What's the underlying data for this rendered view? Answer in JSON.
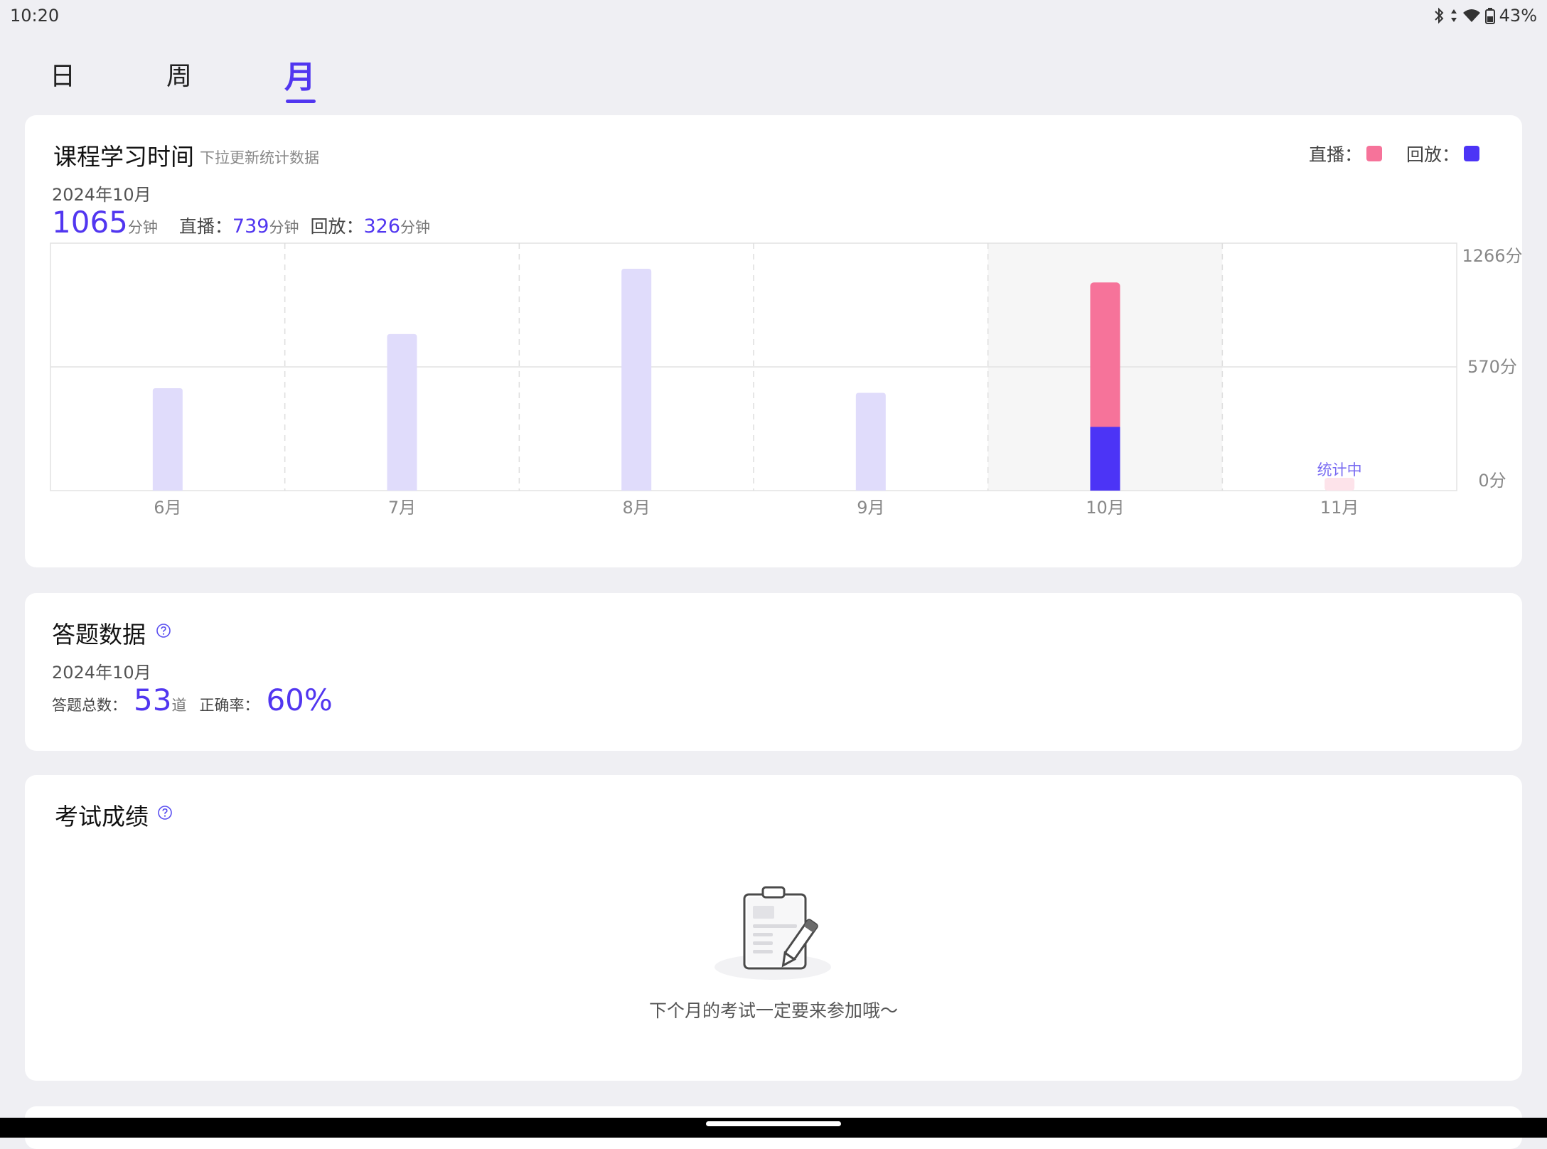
{
  "status_bar": {
    "time": "10:20",
    "battery": "43%"
  },
  "tabs": [
    {
      "label": "日",
      "active": false
    },
    {
      "label": "周",
      "active": false
    },
    {
      "label": "月",
      "active": true
    }
  ],
  "study": {
    "title": "课程学习时间",
    "subtitle": "下拉更新统计数据",
    "legend": {
      "live": "直播：",
      "replay": "回放："
    },
    "date": "2024年10月",
    "total": "1065",
    "total_unit": "分钟",
    "live_label": "直播：",
    "live_value": "739",
    "live_unit": "分钟",
    "replay_label": "回放：",
    "replay_value": "326",
    "replay_unit": "分钟",
    "in_progress_label": "统计中"
  },
  "colors": {
    "accent": "#5136f0",
    "live": "#f6739a",
    "replay": "#4c34f6",
    "inactive_bar": "#e0dcfb",
    "pending_bar": "#fde3ea"
  },
  "chart_data": {
    "type": "bar",
    "categories": [
      "6月",
      "7月",
      "8月",
      "9月",
      "10月",
      "11月"
    ],
    "series": [
      {
        "name": "直播",
        "values": [
          null,
          null,
          null,
          null,
          739,
          0
        ]
      },
      {
        "name": "回放",
        "values": [
          null,
          null,
          null,
          null,
          326,
          0
        ]
      }
    ],
    "totals": [
      524,
      801,
      1135,
      500,
      1065,
      0
    ],
    "selected_category": "10月",
    "y_ticks": [
      "1266分",
      "570分",
      "0分"
    ],
    "ylim": [
      0,
      1266
    ],
    "grid": true
  },
  "answers": {
    "title": "答题数据",
    "date": "2024年10月",
    "total_label": "答题总数：",
    "total_value": "53",
    "total_unit": "道",
    "accuracy_label": "正确率：",
    "accuracy_value": "60%"
  },
  "exam": {
    "title": "考试成绩",
    "empty_message": "下个月的考试一定要来参加哦～"
  }
}
